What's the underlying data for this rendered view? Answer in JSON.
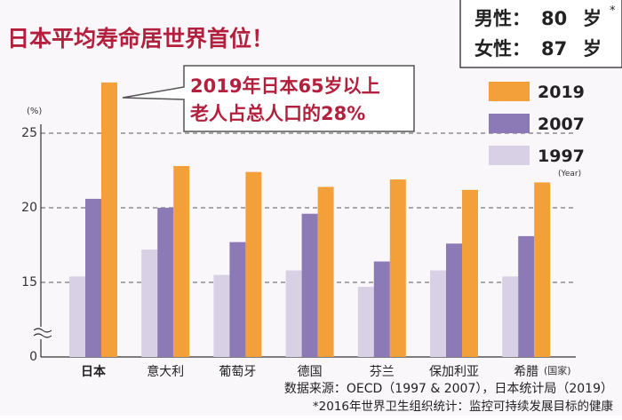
{
  "title": "日本平均寿命居世界首位！",
  "life_box": {
    "male_label": "男性：",
    "male_value": "80",
    "female_label": "女性：",
    "female_value": "87",
    "unit": "岁",
    "footnote_mark": "*"
  },
  "callout": {
    "line1": "2019年日本65岁以上",
    "line2": "老人占总人口的28%"
  },
  "year_unit": "(Year)",
  "country_unit": "(国家)",
  "source": {
    "line1": "数据来源：OECD（1997 & 2007），日本统计局（2019）",
    "line2": "*2016年世界卫生组织统计：监控可持续发展目标的健康"
  },
  "colors": {
    "title_red": "#b3203d",
    "bar_1997": "#d8d1e6",
    "bar_2007": "#8b7ab5",
    "bar_2019": "#f4a03a",
    "background": "#faf7fb"
  },
  "chart_data": {
    "type": "bar",
    "title": "日本平均寿命居世界首位！",
    "ylabel": "(%)",
    "xlabel": "(国家)",
    "categories": [
      "日本",
      "意大利",
      "葡萄牙",
      "德国",
      "芬兰",
      "保加利亚",
      "希腊"
    ],
    "series": [
      {
        "name": "1997",
        "color": "#d8d1e6",
        "values": [
          15.4,
          17.2,
          15.5,
          15.8,
          14.7,
          15.8,
          15.4
        ]
      },
      {
        "name": "2007",
        "color": "#8b7ab5",
        "values": [
          20.6,
          20.0,
          17.7,
          19.6,
          16.4,
          17.6,
          18.1
        ]
      },
      {
        "name": "2019",
        "color": "#f4a03a",
        "values": [
          28.4,
          22.8,
          22.4,
          21.4,
          21.9,
          21.2,
          21.7
        ]
      }
    ],
    "yticks": [
      "0",
      "15",
      "20",
      "25"
    ],
    "ylim": [
      0,
      28.4
    ],
    "axis_break": true,
    "grid": true,
    "legend_position": "right"
  }
}
